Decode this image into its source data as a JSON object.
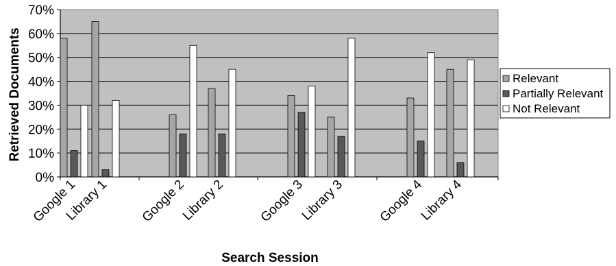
{
  "chart_data": {
    "type": "bar",
    "title": "",
    "xlabel": "Search Session",
    "ylabel": "Retrieved Documents",
    "ylim": [
      0,
      70
    ],
    "yticks": [
      "0%",
      "10%",
      "20%",
      "30%",
      "40%",
      "50%",
      "60%",
      "70%"
    ],
    "categories": [
      "Google 1",
      "Library 1",
      "Google 2",
      "Library 2",
      "Google 3",
      "Library 3",
      "Google 4",
      "Library 4"
    ],
    "series": [
      {
        "name": "Relevant",
        "color": "#a6a6a6",
        "values": [
          58,
          65,
          26,
          37,
          34,
          25,
          33,
          45
        ]
      },
      {
        "name": "Partially Relevant",
        "color": "#595959",
        "values": [
          11,
          3,
          18,
          18,
          27,
          17,
          15,
          6
        ]
      },
      {
        "name": "Not Relevant",
        "color": "#ffffff",
        "values": [
          30,
          32,
          55,
          45,
          38,
          58,
          52,
          49
        ]
      }
    ],
    "grid": true,
    "legend_position": "right",
    "plot_background": "#c0c0c0"
  }
}
